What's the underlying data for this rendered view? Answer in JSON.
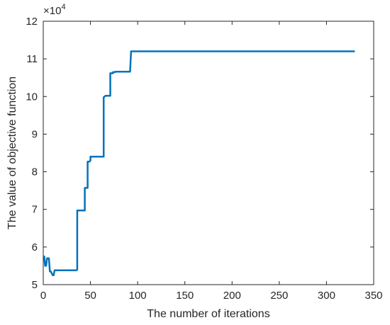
{
  "chart_data": {
    "type": "line",
    "xlabel": "The number of iterations",
    "ylabel": "The value of objective function",
    "xlim": [
      0,
      350
    ],
    "ylim": [
      5,
      12
    ],
    "xticks": [
      0,
      50,
      100,
      150,
      200,
      250,
      300,
      350
    ],
    "yticks": [
      5,
      6,
      7,
      8,
      9,
      10,
      11,
      12
    ],
    "y_exponent_base": "×10",
    "y_exponent_power": "4",
    "grid": false,
    "legend": "none",
    "line_color": "#0072bd",
    "series": [
      {
        "x": [
          0,
          1,
          2,
          3,
          4,
          5,
          6,
          7,
          8,
          9,
          10,
          11,
          12,
          13,
          14,
          35,
          36,
          36,
          43,
          44,
          44,
          46,
          47,
          47,
          49,
          50,
          50,
          63,
          64,
          64,
          66,
          67,
          67,
          70,
          71,
          71,
          73,
          74,
          74,
          76,
          77,
          77,
          92,
          93,
          330
        ],
        "y": [
          5.75,
          5.75,
          5.5,
          5.5,
          5.7,
          5.7,
          5.7,
          5.35,
          5.35,
          5.3,
          5.25,
          5.25,
          5.38,
          5.38,
          5.38,
          5.38,
          5.4,
          6.97,
          6.97,
          6.97,
          7.57,
          7.57,
          7.57,
          8.27,
          8.27,
          8.3,
          8.4,
          8.4,
          8.4,
          9.98,
          10.02,
          10.02,
          10.02,
          10.02,
          10.02,
          10.62,
          10.62,
          10.62,
          10.65,
          10.65,
          10.66,
          10.66,
          10.66,
          11.2,
          11.2
        ]
      }
    ]
  }
}
